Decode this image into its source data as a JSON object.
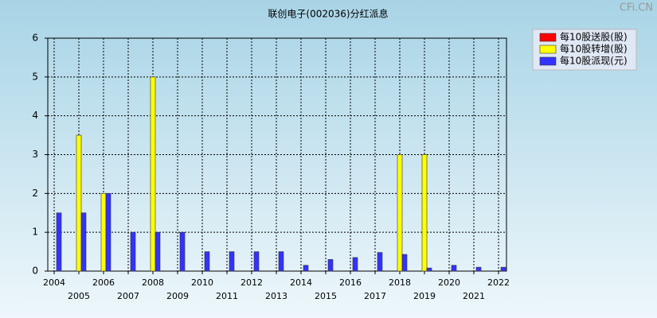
{
  "chart_data": {
    "type": "bar",
    "title": "联创电子(002036)分红派息",
    "watermark": "CFi.CN",
    "categories": [
      "2004",
      "2005",
      "2006",
      "2007",
      "2008",
      "2009",
      "2010",
      "2011",
      "2012",
      "2013",
      "2014",
      "2015",
      "2016",
      "2017",
      "2018",
      "2019",
      "2020",
      "2021",
      "2022"
    ],
    "series": [
      {
        "name": "每10股送股(股)",
        "color": "#ff0000",
        "values": [
          0,
          0,
          0,
          0,
          0,
          0,
          0,
          0,
          0,
          0,
          0,
          0,
          0,
          0,
          0,
          0,
          0,
          0,
          0
        ]
      },
      {
        "name": "每10股转增(股)",
        "color": "#ffff00",
        "values": [
          0,
          3.5,
          2,
          0,
          5,
          0,
          0,
          0,
          0,
          0,
          0,
          0,
          0,
          0,
          3,
          3,
          0,
          0,
          0
        ]
      },
      {
        "name": "每10股派现(元)",
        "color": "#3333ff",
        "values": [
          1.5,
          1.5,
          2,
          1,
          1,
          1,
          0.5,
          0.5,
          0.5,
          0.5,
          0.15,
          0.3,
          0.35,
          0.48,
          0.43,
          0.08,
          0.15,
          0.1,
          0.1
        ]
      }
    ],
    "ylim": [
      0,
      6
    ],
    "yticks": [
      0,
      1,
      2,
      3,
      4,
      5,
      6
    ],
    "grid": true,
    "legend": "top-right"
  }
}
